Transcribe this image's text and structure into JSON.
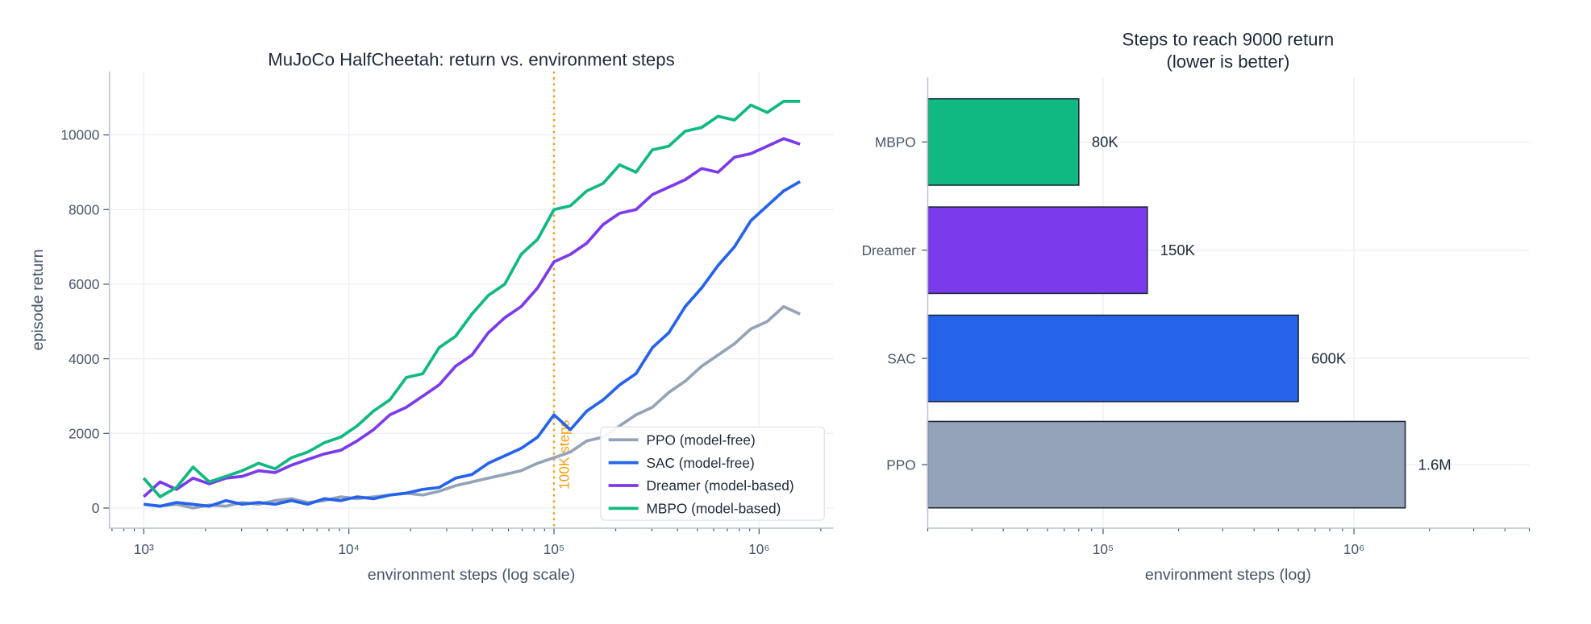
{
  "chart_data": [
    {
      "type": "line",
      "title": "MuJoCo HalfCheetah:  return vs. environment steps",
      "xlabel": "environment steps (log scale)",
      "ylabel": "episode return",
      "xscale": "log",
      "xlim": [
        680,
        2300000
      ],
      "ylim": [
        -540,
        11700
      ],
      "xticks": [
        {
          "value": 1000,
          "label": "10³"
        },
        {
          "value": 10000,
          "label": "10⁴"
        },
        {
          "value": 100000,
          "label": "10⁵"
        },
        {
          "value": 1000000,
          "label": "10⁶"
        }
      ],
      "yticks": [
        0,
        2000,
        4000,
        6000,
        8000,
        10000
      ],
      "grid": true,
      "legend": "lower-right",
      "annotation": {
        "x": 100000,
        "label": "100K steps",
        "color": "#f59e0b"
      },
      "x": [
        1000,
        1202,
        1445,
        1738,
        2089,
        2512,
        3020,
        3631,
        4365,
        5248,
        6310,
        7586,
        9120,
        10965,
        13183,
        15849,
        19055,
        22909,
        27542,
        33113,
        39811,
        47863,
        57544,
        69183,
        83176,
        100000,
        120226,
        144544,
        173780,
        208930,
        251189,
        301995,
        363078,
        436516,
        524807,
        630957,
        758578,
        912011,
        1096478,
        1318257,
        1584893
      ],
      "series": [
        {
          "name": "PPO (model-free)",
          "color": "#94a3b8",
          "values": [
            100,
            50,
            100,
            0,
            80,
            50,
            150,
            100,
            200,
            250,
            150,
            200,
            300,
            250,
            300,
            350,
            400,
            350,
            450,
            600,
            700,
            800,
            900,
            1000,
            1200,
            1350,
            1500,
            1800,
            1900,
            2200,
            2500,
            2700,
            3100,
            3400,
            3800,
            4100,
            4400,
            4800,
            5000,
            5400,
            5200
          ]
        },
        {
          "name": "SAC (model-free)",
          "color": "#2563eb",
          "values": [
            100,
            50,
            150,
            100,
            50,
            200,
            100,
            150,
            100,
            200,
            100,
            250,
            200,
            300,
            250,
            350,
            400,
            500,
            550,
            800,
            900,
            1200,
            1400,
            1600,
            1900,
            2500,
            2100,
            2600,
            2900,
            3300,
            3600,
            4300,
            4700,
            5400,
            5900,
            6500,
            7000,
            7700,
            8100,
            8500,
            8750
          ]
        },
        {
          "name": "Dreamer (model-based)",
          "color": "#7c3aed",
          "values": [
            300,
            700,
            500,
            800,
            650,
            800,
            850,
            1000,
            950,
            1150,
            1300,
            1450,
            1550,
            1800,
            2100,
            2500,
            2700,
            3000,
            3300,
            3800,
            4100,
            4700,
            5100,
            5400,
            5900,
            6600,
            6800,
            7100,
            7600,
            7900,
            8000,
            8400,
            8600,
            8800,
            9100,
            9000,
            9400,
            9500,
            9700,
            9900,
            9750
          ]
        },
        {
          "name": "MBPO (model-based)",
          "color": "#10b981",
          "values": [
            800,
            300,
            550,
            1100,
            700,
            850,
            1000,
            1200,
            1050,
            1350,
            1500,
            1750,
            1900,
            2200,
            2600,
            2900,
            3500,
            3600,
            4300,
            4600,
            5200,
            5700,
            6000,
            6800,
            7200,
            8000,
            8100,
            8500,
            8700,
            9200,
            9000,
            9600,
            9700,
            10100,
            10200,
            10500,
            10400,
            10800,
            10600,
            10900,
            10900
          ]
        }
      ]
    },
    {
      "type": "bar",
      "orientation": "horizontal",
      "title": "Steps to reach 9000 return",
      "subtitle": "(lower is better)",
      "xlabel": "environment steps (log)",
      "xscale": "log",
      "xlim": [
        20000,
        5000000
      ],
      "xticks": [
        {
          "value": 100000,
          "label": "10⁵"
        },
        {
          "value": 1000000,
          "label": "10⁶"
        }
      ],
      "grid": true,
      "categories": [
        "MBPO",
        "Dreamer",
        "SAC",
        "PPO"
      ],
      "values": [
        80000,
        150000,
        600000,
        1600000
      ],
      "data_labels": [
        "80K",
        "150K",
        "600K",
        "1.6M"
      ],
      "colors": [
        "#10b981",
        "#7c3aed",
        "#2563eb",
        "#94a3b8"
      ],
      "edge_color": "#1e293b"
    }
  ]
}
